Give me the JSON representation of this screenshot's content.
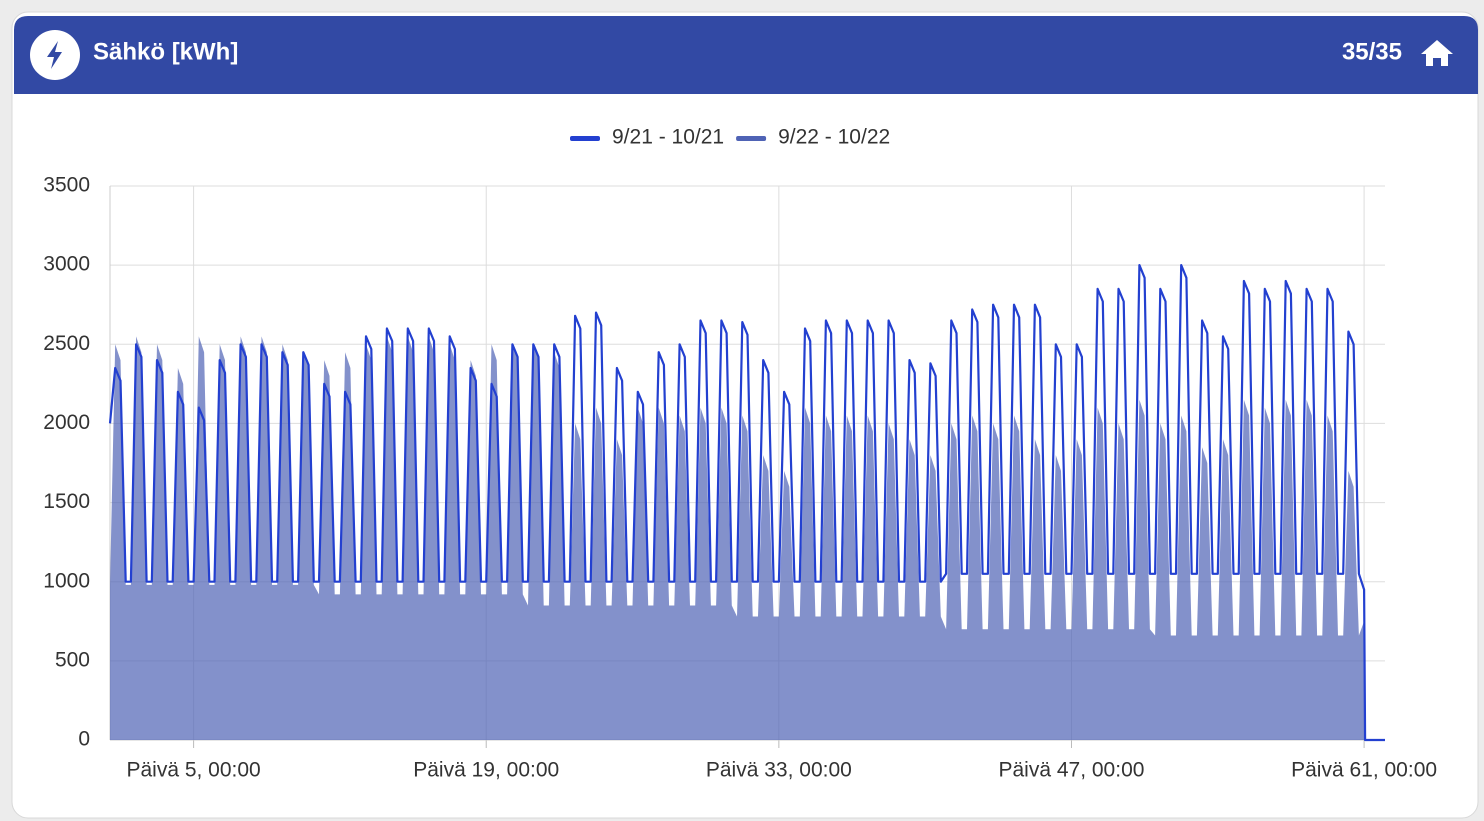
{
  "header": {
    "title": "Sähkö [kWh]",
    "counter": "35/35"
  },
  "chart_data": {
    "type": "line",
    "x": [
      1,
      1.25,
      1.5,
      1.75,
      2,
      2.25,
      2.5,
      2.75,
      3,
      3.25,
      3.5,
      3.75,
      4,
      4.25,
      4.5,
      4.75,
      5,
      5.25,
      5.5,
      5.75,
      6,
      6.25,
      6.5,
      6.75,
      7,
      7.25,
      7.5,
      7.75,
      8,
      8.25,
      8.5,
      8.75,
      9,
      9.25,
      9.5,
      9.75,
      10,
      10.25,
      10.5,
      10.75,
      11,
      11.25,
      11.5,
      11.75,
      12,
      12.25,
      12.5,
      12.75,
      13,
      13.25,
      13.5,
      13.75,
      14,
      14.25,
      14.5,
      14.75,
      15,
      15.25,
      15.5,
      15.75,
      16,
      16.25,
      16.5,
      16.75,
      17,
      17.25,
      17.5,
      17.75,
      18,
      18.25,
      18.5,
      18.75,
      19,
      19.25,
      19.5,
      19.75,
      20,
      20.25,
      20.5,
      20.75,
      21,
      21.25,
      21.5,
      21.75,
      22,
      22.25,
      22.5,
      22.75,
      23,
      23.25,
      23.5,
      23.75,
      24,
      24.25,
      24.5,
      24.75,
      25,
      25.25,
      25.5,
      25.75,
      26,
      26.25,
      26.5,
      26.75,
      27,
      27.25,
      27.5,
      27.75,
      28,
      28.25,
      28.5,
      28.75,
      29,
      29.25,
      29.5,
      29.75,
      30,
      30.25,
      30.5,
      30.75,
      31,
      31.25,
      31.5,
      31.75,
      32,
      32.25,
      32.5,
      32.75,
      33,
      33.25,
      33.5,
      33.75,
      34,
      34.25,
      34.5,
      34.75,
      35,
      35.25,
      35.5,
      35.75,
      36,
      36.25,
      36.5,
      36.75,
      37,
      37.25,
      37.5,
      37.75,
      38,
      38.25,
      38.5,
      38.75,
      39,
      39.25,
      39.5,
      39.75,
      40,
      40.25,
      40.5,
      40.75,
      41,
      41.25,
      41.5,
      41.75,
      42,
      42.25,
      42.5,
      42.75,
      43,
      43.25,
      43.5,
      43.75,
      44,
      44.25,
      44.5,
      44.75,
      45,
      45.25,
      45.5,
      45.75,
      46,
      46.25,
      46.5,
      46.75,
      47,
      47.25,
      47.5,
      47.75,
      48,
      48.25,
      48.5,
      48.75,
      49,
      49.25,
      49.5,
      49.75,
      50,
      50.25,
      50.5,
      50.75,
      51,
      51.25,
      51.5,
      51.75,
      52,
      52.25,
      52.5,
      52.75,
      53,
      53.25,
      53.5,
      53.75,
      54,
      54.25,
      54.5,
      54.75,
      55,
      55.25,
      55.5,
      55.75,
      56,
      56.25,
      56.5,
      56.75,
      57,
      57.25,
      57.5,
      57.75,
      58,
      58.25,
      58.5,
      58.75,
      59,
      59.25,
      59.5,
      59.75,
      60,
      60.25,
      60.5,
      60.75,
      61,
      61.05,
      62
    ],
    "series": [
      {
        "name": "9/21 - 10/21",
        "color": "#2340d0",
        "values": [
          2000,
          2350,
          2270,
          1000,
          1000,
          2500,
          2420,
          1000,
          1000,
          2400,
          2320,
          1000,
          1000,
          2200,
          2120,
          1000,
          1000,
          2100,
          2020,
          1000,
          1000,
          2400,
          2320,
          1000,
          1000,
          2500,
          2420,
          1000,
          1000,
          2500,
          2420,
          1000,
          1000,
          2450,
          2370,
          1000,
          1000,
          2450,
          2370,
          1000,
          1000,
          2250,
          2170,
          1000,
          1000,
          2200,
          2120,
          1000,
          1000,
          2550,
          2470,
          1000,
          1000,
          2600,
          2520,
          1000,
          1000,
          2600,
          2520,
          1000,
          1000,
          2600,
          2520,
          1000,
          1000,
          2550,
          2470,
          1000,
          1000,
          2350,
          2270,
          1000,
          1000,
          2250,
          2170,
          1000,
          1000,
          2500,
          2420,
          1000,
          1000,
          2500,
          2420,
          1000,
          1000,
          2500,
          2420,
          1000,
          1000,
          2680,
          2600,
          1000,
          1000,
          2700,
          2620,
          1000,
          1000,
          2350,
          2270,
          1000,
          1000,
          2200,
          2120,
          1000,
          1000,
          2450,
          2370,
          1000,
          1000,
          2500,
          2420,
          1000,
          1000,
          2650,
          2570,
          1000,
          1000,
          2650,
          2570,
          1000,
          1000,
          2640,
          2560,
          1000,
          1000,
          2400,
          2320,
          1000,
          1000,
          2200,
          2120,
          1000,
          1000,
          2600,
          2520,
          1000,
          1000,
          2650,
          2570,
          1000,
          1000,
          2650,
          2570,
          1000,
          1000,
          2650,
          2570,
          1000,
          1000,
          2650,
          2570,
          1000,
          1000,
          2400,
          2320,
          1000,
          1000,
          2380,
          2300,
          1000,
          1050,
          2650,
          2570,
          1050,
          1050,
          2720,
          2640,
          1050,
          1050,
          2750,
          2670,
          1050,
          1050,
          2750,
          2670,
          1050,
          1050,
          2750,
          2670,
          1050,
          1050,
          2500,
          2420,
          1050,
          1050,
          2500,
          2420,
          1050,
          1050,
          2850,
          2770,
          1050,
          1050,
          2850,
          2770,
          1050,
          1050,
          3000,
          2920,
          1050,
          1050,
          2850,
          2770,
          1050,
          1050,
          3000,
          2920,
          1050,
          1050,
          2650,
          2570,
          1050,
          1050,
          2550,
          2470,
          1050,
          1050,
          2900,
          2820,
          1050,
          1050,
          2850,
          2770,
          1050,
          1050,
          2900,
          2820,
          1050,
          1050,
          2850,
          2770,
          1050,
          1050,
          2850,
          2770,
          1050,
          1050,
          2580,
          2500,
          1050,
          950,
          0,
          0
        ]
      },
      {
        "name": "9/22 - 10/22",
        "color": "#4f63b5",
        "values": [
          980,
          2500,
          2400,
          980,
          980,
          2550,
          2450,
          980,
          980,
          2500,
          2400,
          980,
          980,
          2350,
          2250,
          980,
          980,
          2550,
          2450,
          980,
          980,
          2500,
          2400,
          980,
          980,
          2550,
          2450,
          980,
          980,
          2550,
          2450,
          980,
          980,
          2500,
          2400,
          980,
          980,
          2450,
          2350,
          980,
          920,
          2400,
          2300,
          920,
          920,
          2450,
          2350,
          920,
          920,
          2500,
          2400,
          920,
          920,
          2550,
          2450,
          920,
          920,
          2550,
          2450,
          920,
          920,
          2550,
          2450,
          920,
          920,
          2500,
          2400,
          920,
          920,
          2400,
          2300,
          920,
          920,
          2500,
          2400,
          920,
          920,
          2500,
          2400,
          920,
          850,
          2500,
          2400,
          850,
          850,
          2450,
          2350,
          850,
          850,
          2000,
          1900,
          850,
          850,
          2100,
          2000,
          850,
          850,
          1900,
          1800,
          850,
          850,
          2100,
          2000,
          850,
          850,
          2100,
          2000,
          850,
          850,
          2050,
          1950,
          850,
          850,
          2100,
          2000,
          850,
          850,
          2100,
          2000,
          850,
          780,
          2050,
          1950,
          780,
          780,
          1800,
          1700,
          780,
          780,
          1700,
          1600,
          780,
          780,
          2100,
          2000,
          780,
          780,
          2050,
          1950,
          780,
          780,
          2050,
          1950,
          780,
          780,
          2050,
          1950,
          780,
          780,
          2000,
          1900,
          780,
          780,
          1900,
          1800,
          780,
          780,
          1800,
          1700,
          780,
          700,
          2000,
          1900,
          700,
          700,
          2050,
          1950,
          700,
          700,
          2000,
          1900,
          700,
          700,
          2050,
          1950,
          700,
          700,
          1900,
          1800,
          700,
          700,
          1800,
          1700,
          700,
          700,
          1900,
          1800,
          700,
          700,
          2100,
          2000,
          700,
          700,
          2000,
          1900,
          700,
          700,
          2150,
          2050,
          700,
          660,
          2000,
          1900,
          660,
          660,
          2050,
          1950,
          660,
          660,
          1850,
          1750,
          660,
          660,
          1900,
          1800,
          660,
          660,
          2150,
          2050,
          660,
          660,
          2100,
          2000,
          660,
          660,
          2150,
          2050,
          660,
          660,
          2150,
          2050,
          660,
          660,
          2050,
          1950,
          660,
          660,
          1700,
          1600,
          660,
          750,
          0,
          0
        ]
      }
    ],
    "xlim": [
      1,
      62
    ],
    "xticks": [
      {
        "value": 5,
        "label": "Päivä 5, 00:00"
      },
      {
        "value": 19,
        "label": "Päivä 19, 00:00"
      },
      {
        "value": 33,
        "label": "Päivä 33, 00:00"
      },
      {
        "value": 47,
        "label": "Päivä 47, 00:00"
      },
      {
        "value": 61,
        "label": "Päivä 61, 00:00"
      }
    ],
    "ylim": [
      0,
      3500
    ],
    "yticks": [
      0,
      500,
      1000,
      1500,
      2000,
      2500,
      3000,
      3500
    ],
    "grid": true,
    "legend": "top"
  }
}
